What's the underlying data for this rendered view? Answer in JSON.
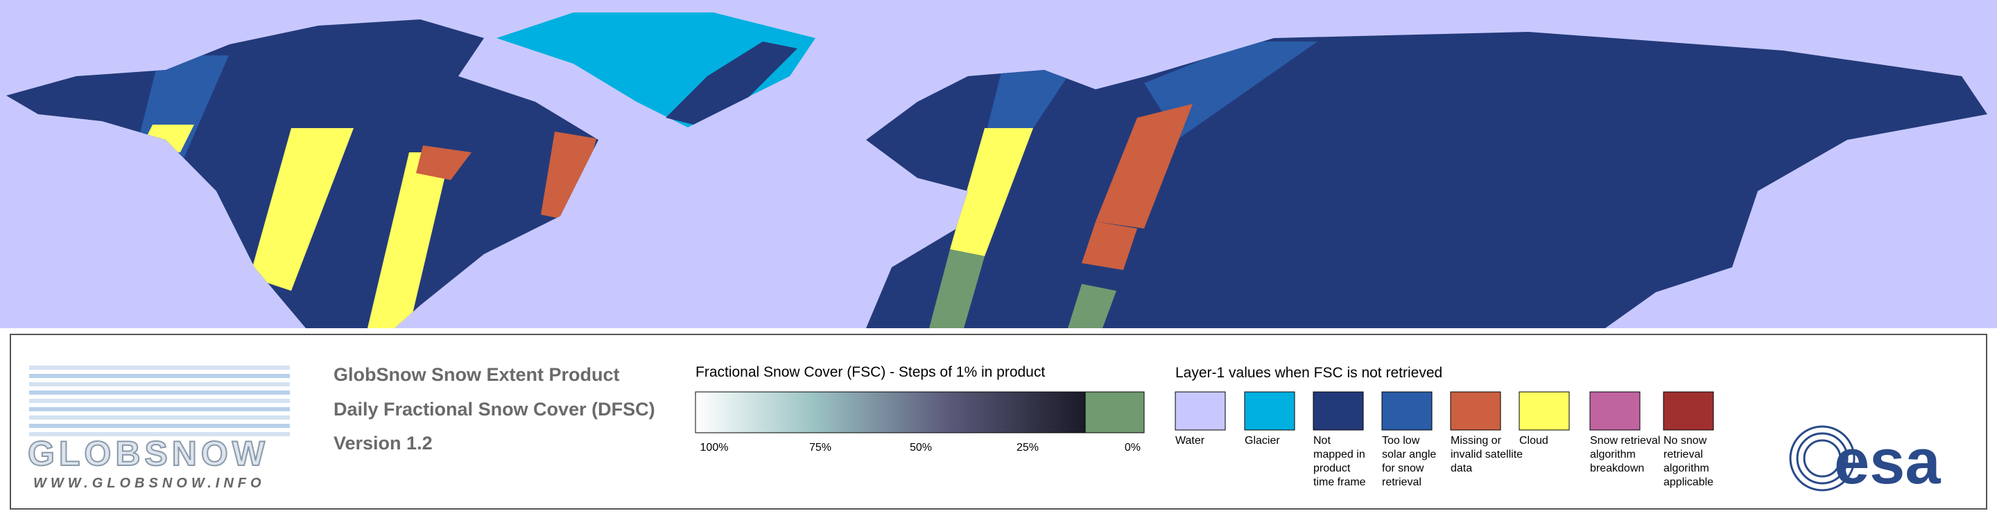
{
  "logo": {
    "name": "GLOBSNOW",
    "url": "WWW.GLOBSNOW.INFO"
  },
  "product": {
    "lines": [
      "GlobSnow Snow Extent Product",
      "Daily Fractional Snow Cover (DFSC)",
      "Version 1.2"
    ]
  },
  "fsc_legend": {
    "title": "Fractional Snow Cover (FSC) - Steps of 1% in product",
    "labels": [
      "100%",
      "75%",
      "50%",
      "25%",
      "0%"
    ]
  },
  "layer1_legend": {
    "title": "Layer-1 values when FSC is not retrieved",
    "classes": [
      {
        "label": [
          "Water"
        ],
        "color": "#c8c8ff"
      },
      {
        "label": [
          "Glacier"
        ],
        "color": "#00b0e0"
      },
      {
        "label": [
          "Not",
          "mapped in",
          "product",
          "time frame"
        ],
        "color": "#233a7a"
      },
      {
        "label": [
          "Too low",
          "solar angle",
          "for snow",
          "retrieval"
        ],
        "color": "#2a5ca8"
      },
      {
        "label": [
          "Missing or",
          "invalid satellite",
          "data"
        ],
        "color": "#cc6040"
      },
      {
        "label": [
          "Cloud"
        ],
        "color": "#ffff60"
      },
      {
        "label": [
          "Snow retrieval",
          "algorithm",
          "breakdown"
        ],
        "color": "#c064a0"
      },
      {
        "label": [
          "No snow",
          "retrieval",
          "algorithm",
          "applicable"
        ],
        "color": "#a03030"
      }
    ]
  },
  "agency": {
    "name": "esa"
  }
}
